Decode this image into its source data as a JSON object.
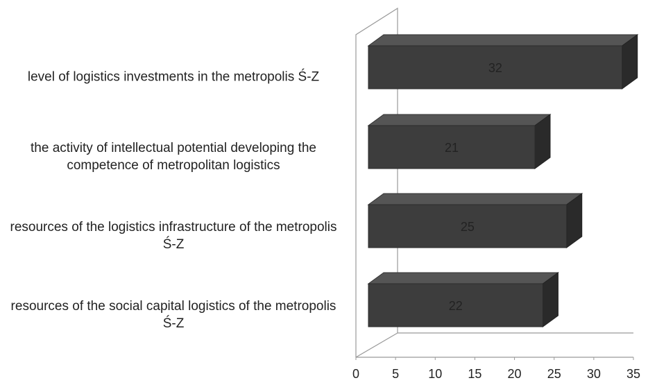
{
  "chart_data": {
    "type": "bar",
    "orientation": "horizontal",
    "three_d": true,
    "categories": [
      "level of logistics investments in the metropolis Ś-Z",
      "the activity of intellectual potential developing the competence of metropolitan logistics",
      "resources of the logistics infrastructure of the metropolis Ś-Z",
      "resources of the social capital logistics of the metropolis Ś-Z"
    ],
    "values": [
      32,
      21,
      25,
      22
    ],
    "color": "#3d3d3d",
    "data_labels": true,
    "xlim": [
      0,
      35
    ],
    "xticks": [
      0,
      5,
      10,
      15,
      20,
      25,
      30,
      35
    ],
    "grid": false
  }
}
